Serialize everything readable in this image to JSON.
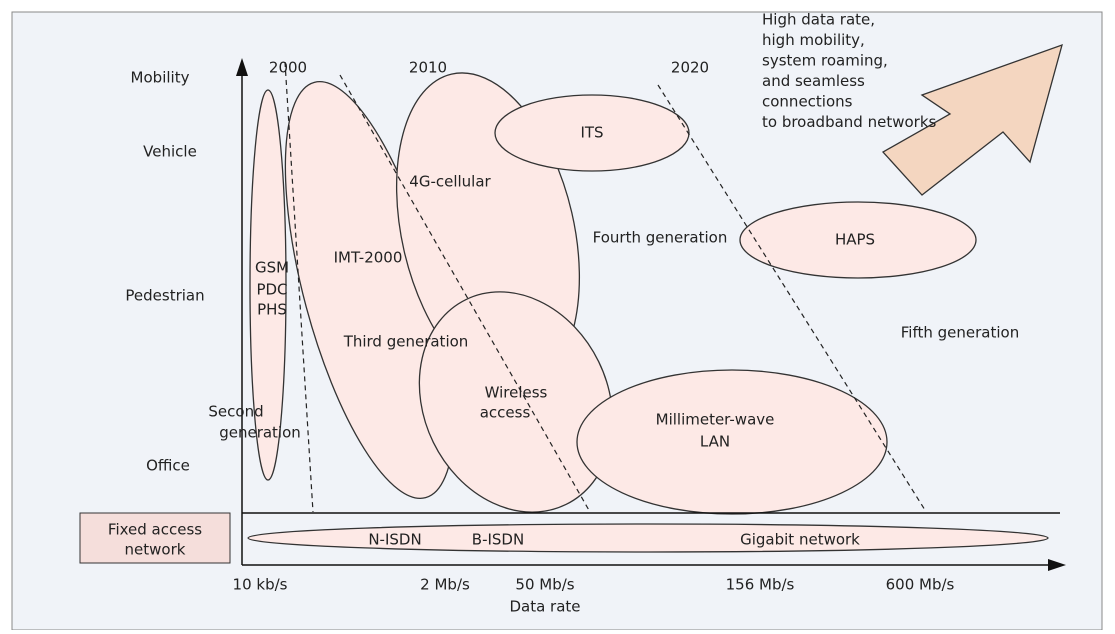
{
  "axis": {
    "y_labels": [
      "Mobility",
      "Vehicle",
      "Pedestrian",
      "Office"
    ],
    "x_labels": [
      "10 kb/s",
      "2 Mb/s",
      "50 Mb/s",
      "156 Mb/s",
      "600 Mb/s"
    ],
    "x_title": "Data rate"
  },
  "years": [
    "2000",
    "2010",
    "2020"
  ],
  "arrow_text": [
    "High data rate,",
    "high mobility,",
    "system roaming,",
    "and seamless",
    "connections",
    "to broadband networks"
  ],
  "regions": {
    "second": {
      "systems": [
        "GSM",
        "PDC",
        "PHS"
      ],
      "label": [
        "Second",
        "generation"
      ]
    },
    "imt": "IMT-2000",
    "third": "Third generation",
    "cellular4g": "4G-cellular",
    "its": "ITS",
    "fourth": "Fourth generation",
    "haps": "HAPS",
    "fifth": "Fifth generation",
    "wireless": [
      "Wireless",
      "access"
    ],
    "mmwave": [
      "Millimeter-wave",
      "LAN"
    ]
  },
  "fixed": {
    "label": [
      "Fixed access",
      "network"
    ],
    "items": [
      "N-ISDN",
      "B-ISDN",
      "Gigabit network"
    ]
  }
}
